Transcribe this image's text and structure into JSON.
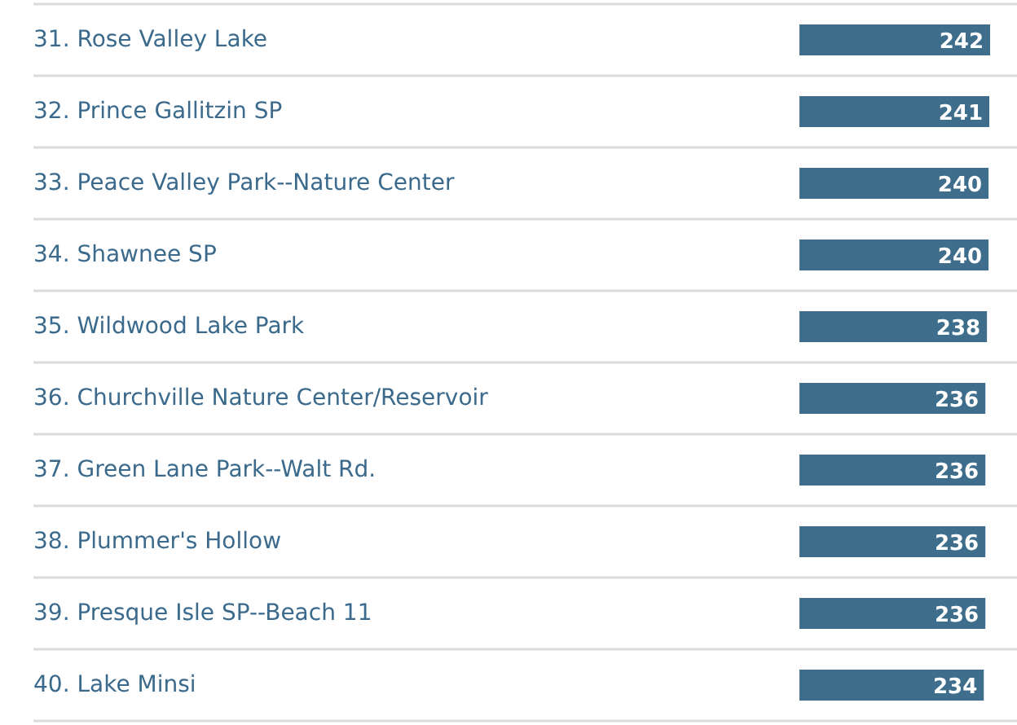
{
  "chart_data": {
    "type": "bar",
    "orientation": "horizontal",
    "data_labels": true,
    "color": "#3f6e8c",
    "categories": [
      "31.  Rose Valley Lake",
      "32.  Prince Gallitzin SP",
      "33.  Peace Valley Park--Nature Center",
      "34.  Shawnee SP",
      "35.  Wildwood Lake Park",
      "36.  Churchville Nature Center/Reservoir",
      "37.  Green Lane Park--Walt Rd.",
      "38.  Plummer's Hollow",
      "39.  Presque Isle SP--Beach 11",
      "40.  Lake Minsi"
    ],
    "values": [
      242,
      241,
      240,
      240,
      238,
      236,
      236,
      236,
      236,
      234
    ]
  }
}
